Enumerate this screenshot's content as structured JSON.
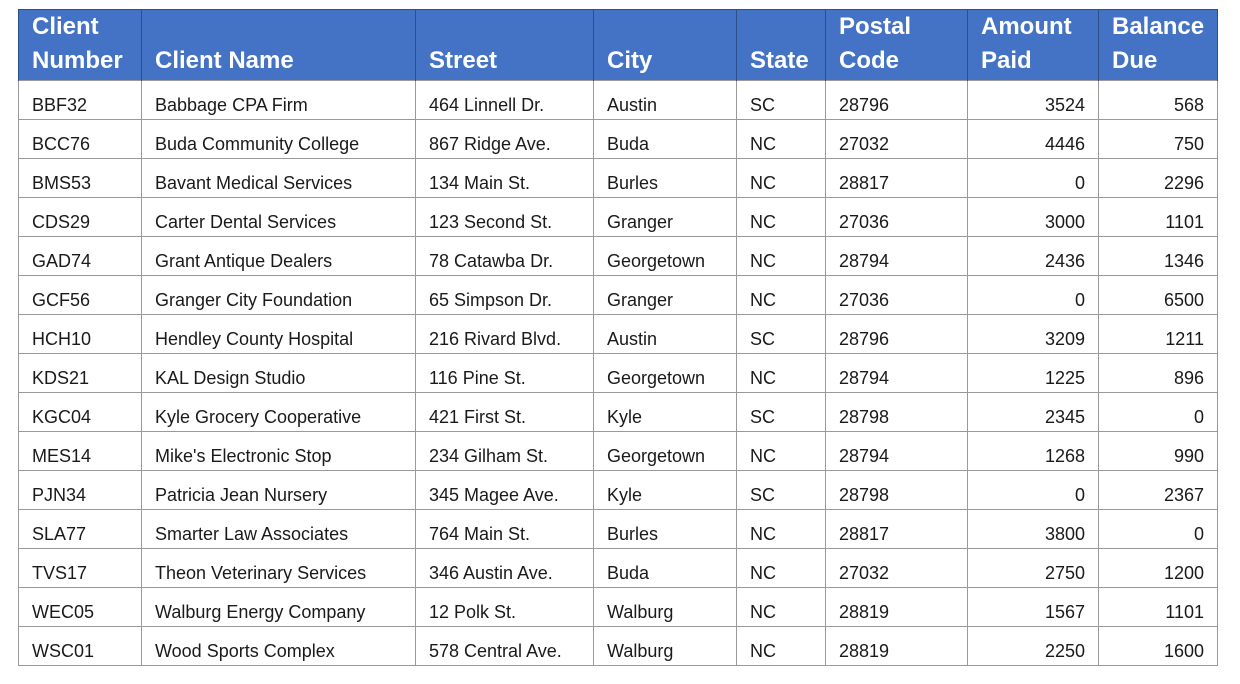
{
  "table": {
    "columns": [
      {
        "key": "client_number",
        "label": "Client\nNumber",
        "align": "left"
      },
      {
        "key": "client_name",
        "label": "Client Name",
        "align": "left"
      },
      {
        "key": "street",
        "label": "Street",
        "align": "left"
      },
      {
        "key": "city",
        "label": "City",
        "align": "left"
      },
      {
        "key": "state",
        "label": "State",
        "align": "left"
      },
      {
        "key": "postal_code",
        "label": "Postal\nCode",
        "align": "left"
      },
      {
        "key": "amount_paid",
        "label": "Amount\nPaid",
        "align": "right"
      },
      {
        "key": "balance_due",
        "label": "Balance\nDue",
        "align": "right"
      }
    ],
    "rows": [
      {
        "client_number": "BBF32",
        "client_name": "Babbage CPA Firm",
        "street": "464 Linnell Dr.",
        "city": "Austin",
        "state": "SC",
        "postal_code": "28796",
        "amount_paid": "3524",
        "balance_due": "568"
      },
      {
        "client_number": "BCC76",
        "client_name": "Buda Community College",
        "street": "867 Ridge Ave.",
        "city": "Buda",
        "state": "NC",
        "postal_code": "27032",
        "amount_paid": "4446",
        "balance_due": "750"
      },
      {
        "client_number": "BMS53",
        "client_name": "Bavant Medical Services",
        "street": "134 Main St.",
        "city": "Burles",
        "state": "NC",
        "postal_code": "28817",
        "amount_paid": "0",
        "balance_due": "2296"
      },
      {
        "client_number": "CDS29",
        "client_name": "Carter Dental Services",
        "street": "123 Second St.",
        "city": "Granger",
        "state": "NC",
        "postal_code": "27036",
        "amount_paid": "3000",
        "balance_due": "1101"
      },
      {
        "client_number": "GAD74",
        "client_name": "Grant Antique Dealers",
        "street": "78 Catawba Dr.",
        "city": "Georgetown",
        "state": "NC",
        "postal_code": "28794",
        "amount_paid": "2436",
        "balance_due": "1346"
      },
      {
        "client_number": "GCF56",
        "client_name": "Granger City Foundation",
        "street": "65 Simpson Dr.",
        "city": "Granger",
        "state": "NC",
        "postal_code": "27036",
        "amount_paid": "0",
        "balance_due": "6500"
      },
      {
        "client_number": "HCH10",
        "client_name": "Hendley County Hospital",
        "street": "216 Rivard Blvd.",
        "city": "Austin",
        "state": "SC",
        "postal_code": "28796",
        "amount_paid": "3209",
        "balance_due": "1211"
      },
      {
        "client_number": "KDS21",
        "client_name": "KAL Design Studio",
        "street": "116 Pine St.",
        "city": "Georgetown",
        "state": "NC",
        "postal_code": "28794",
        "amount_paid": "1225",
        "balance_due": "896"
      },
      {
        "client_number": "KGC04",
        "client_name": "Kyle Grocery Cooperative",
        "street": "421 First St.",
        "city": "Kyle",
        "state": "SC",
        "postal_code": "28798",
        "amount_paid": "2345",
        "balance_due": "0"
      },
      {
        "client_number": "MES14",
        "client_name": "Mike's Electronic Stop",
        "street": "234 Gilham St.",
        "city": "Georgetown",
        "state": "NC",
        "postal_code": "28794",
        "amount_paid": "1268",
        "balance_due": "990"
      },
      {
        "client_number": "PJN34",
        "client_name": "Patricia Jean Nursery",
        "street": "345 Magee Ave.",
        "city": "Kyle",
        "state": "SC",
        "postal_code": "28798",
        "amount_paid": "0",
        "balance_due": "2367"
      },
      {
        "client_number": "SLA77",
        "client_name": "Smarter Law Associates",
        "street": "764 Main St.",
        "city": "Burles",
        "state": "NC",
        "postal_code": "28817",
        "amount_paid": "3800",
        "balance_due": "0"
      },
      {
        "client_number": "TVS17",
        "client_name": "Theon Veterinary Services",
        "street": "346 Austin Ave.",
        "city": "Buda",
        "state": "NC",
        "postal_code": "27032",
        "amount_paid": "2750",
        "balance_due": "1200"
      },
      {
        "client_number": "WEC05",
        "client_name": "Walburg Energy Company",
        "street": "12 Polk St.",
        "city": "Walburg",
        "state": "NC",
        "postal_code": "28819",
        "amount_paid": "1567",
        "balance_due": "1101"
      },
      {
        "client_number": "WSC01",
        "client_name": "Wood Sports Complex",
        "street": "578 Central Ave.",
        "city": "Walburg",
        "state": "NC",
        "postal_code": "28819",
        "amount_paid": "2250",
        "balance_due": "1600"
      }
    ]
  },
  "colors": {
    "header_background": "#4472c4",
    "header_text": "#ffffff",
    "grid": "#9a9a9a"
  }
}
